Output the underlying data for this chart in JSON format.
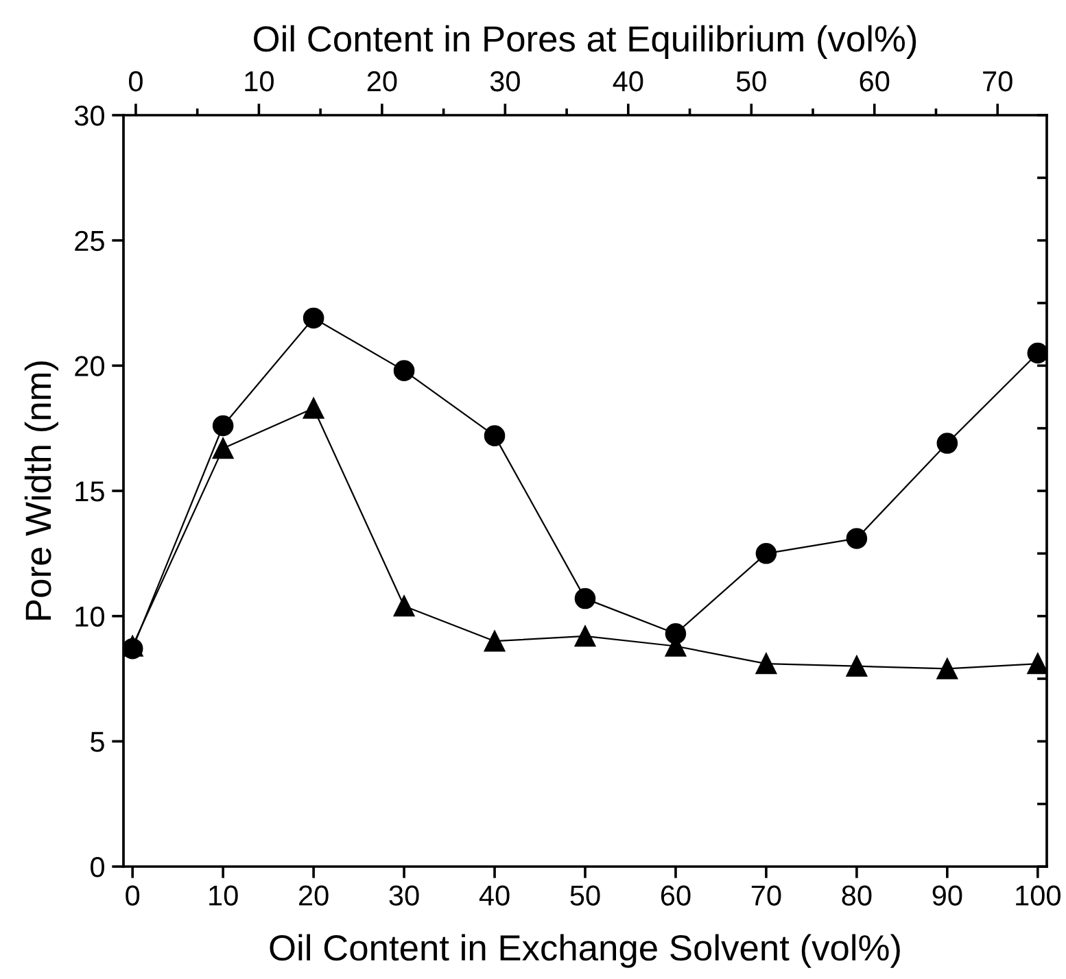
{
  "chart_data": {
    "type": "line",
    "xlabel": "Oil Content in Exchange Solvent (vol%)",
    "ylabel": "Pore Width (nm)",
    "x2label": "Oil Content in Pores at Equilibrium (vol%)",
    "x": [
      0,
      10,
      20,
      30,
      40,
      50,
      60,
      70,
      80,
      90,
      100
    ],
    "series": [
      {
        "color": "#000000",
        "marker": "circle",
        "values": [
          8.7,
          17.6,
          21.9,
          19.8,
          17.2,
          10.7,
          9.3,
          12.5,
          13.1,
          16.9,
          20.5
        ]
      },
      {
        "color": "#000000",
        "marker": "triangle",
        "values": [
          8.8,
          16.7,
          18.3,
          10.4,
          9.0,
          9.2,
          8.8,
          8.1,
          8.0,
          7.9,
          8.1
        ]
      }
    ],
    "xlim": [
      -1,
      101
    ],
    "xticks": [
      0,
      10,
      20,
      30,
      40,
      50,
      60,
      70,
      80,
      90,
      100
    ],
    "x2lim": [
      -1,
      74
    ],
    "x2ticks": [
      0,
      10,
      20,
      30,
      40,
      50,
      60,
      70
    ],
    "ylim": [
      0,
      30
    ],
    "yticks": [
      0,
      5,
      10,
      15,
      20,
      25,
      30
    ],
    "grid": false,
    "legend": false,
    "line_style": "solid"
  }
}
